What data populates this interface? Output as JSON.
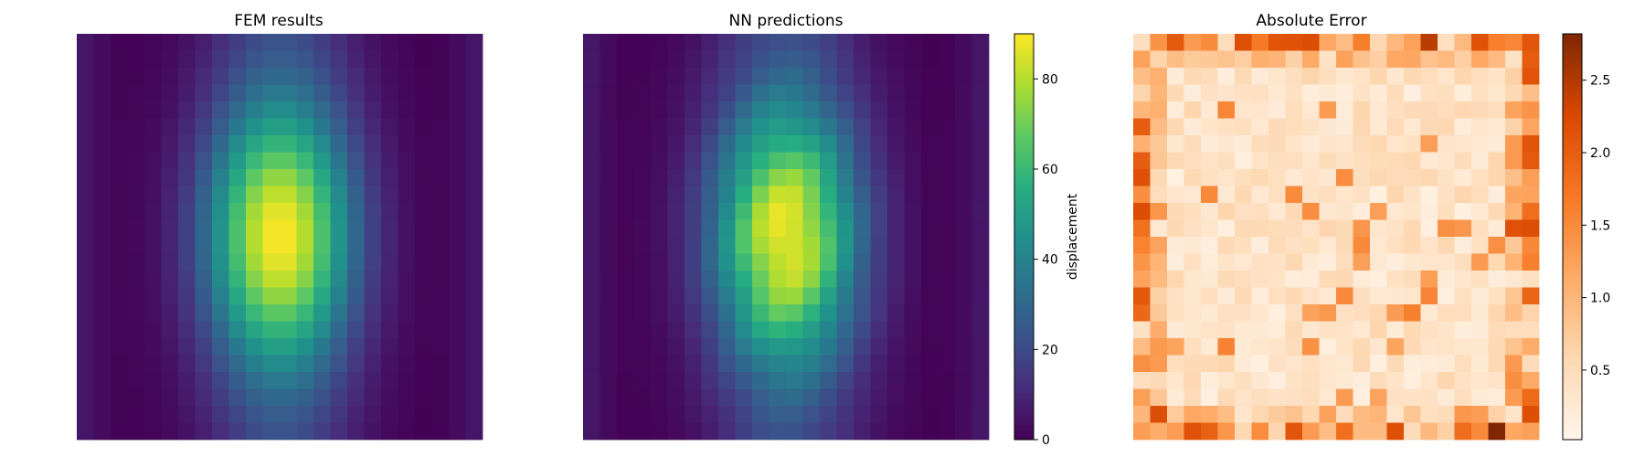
{
  "chart_data": [
    {
      "type": "heatmap",
      "title": "FEM results",
      "grid": [
        24,
        24
      ],
      "colormap": "viridis",
      "vmin": 0,
      "vmax": 90,
      "axes_visible": false,
      "description_values": "Displacement field: peak ~90 at center-left (col≈11.5, row≈11.5), ~0 near columns 2 and 20, mild rise near left/right borders."
    },
    {
      "type": "heatmap",
      "title": "NN predictions",
      "grid": [
        24,
        24
      ],
      "colormap": "viridis",
      "vmin": 0,
      "vmax": 90,
      "axes_visible": false,
      "colorbar": {
        "label": "displacement",
        "ticks": [
          "0",
          "20",
          "40",
          "60",
          "80"
        ],
        "tick_values": [
          0,
          20,
          40,
          60,
          80
        ],
        "range": [
          0,
          90
        ]
      }
    },
    {
      "type": "heatmap",
      "title": "Absolute Error",
      "grid": [
        24,
        24
      ],
      "colormap": "oranges",
      "vmin": 0,
      "vmax": 2.8,
      "axes_visible": false,
      "colorbar": {
        "label": "",
        "ticks": [
          "0.5",
          "1.0",
          "1.5",
          "2.0",
          "2.5"
        ],
        "tick_values": [
          0.5,
          1.0,
          1.5,
          2.0,
          2.5
        ],
        "range": [
          0.02,
          2.82
        ]
      }
    }
  ]
}
